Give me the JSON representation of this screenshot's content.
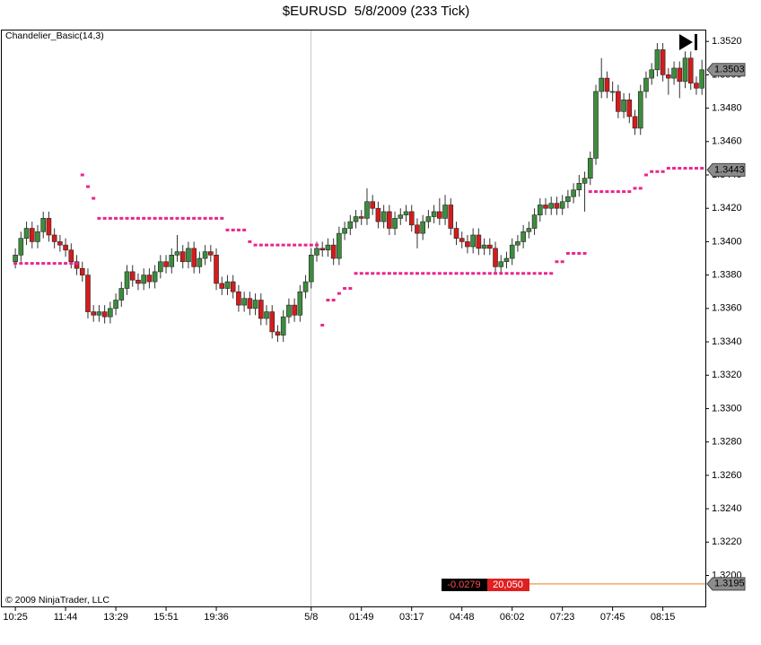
{
  "chart_data": {
    "type": "candlestick",
    "title": "$EURUSD  5/8/2009 (233 Tick)",
    "indicator_label": "Chandelier_Basic(14,3)",
    "copyright": "© 2009 NinjaTrader, LLC",
    "up_color": "#3d8c3d",
    "down_color": "#d41c1c",
    "categories": [
      "10:25",
      null,
      null,
      null,
      null,
      null,
      null,
      null,
      null,
      "11:44",
      null,
      null,
      null,
      null,
      null,
      null,
      null,
      null,
      "13:29",
      null,
      null,
      null,
      null,
      null,
      null,
      null,
      null,
      "15:51",
      null,
      null,
      null,
      null,
      null,
      null,
      null,
      null,
      "19:36",
      null,
      null,
      null,
      null,
      null,
      null,
      null,
      null,
      null,
      null,
      null,
      null,
      null,
      null,
      null,
      null,
      "5/8",
      null,
      null,
      null,
      null,
      null,
      null,
      null,
      null,
      "01:49",
      null,
      null,
      null,
      null,
      null,
      null,
      null,
      null,
      "03:17",
      null,
      null,
      null,
      null,
      null,
      null,
      null,
      null,
      "04:48",
      null,
      null,
      null,
      null,
      null,
      null,
      null,
      null,
      "06:02",
      null,
      null,
      null,
      null,
      null,
      null,
      null,
      null,
      "07:23",
      null,
      null,
      null,
      null,
      null,
      null,
      null,
      null,
      "07:45",
      null,
      null,
      null,
      null,
      null,
      null,
      null,
      null,
      "08:15",
      null,
      null,
      null,
      null,
      null,
      null,
      null
    ],
    "open": [
      1.3388,
      1.3392,
      1.3402,
      1.3408,
      1.34,
      1.3406,
      1.3414,
      1.3404,
      1.34,
      1.3398,
      1.3395,
      1.3388,
      1.3384,
      1.338,
      1.3358,
      1.3356,
      1.3358,
      1.3355,
      1.336,
      1.3365,
      1.3372,
      1.3382,
      1.3377,
      1.3375,
      1.338,
      1.3376,
      1.3382,
      1.3388,
      1.3385,
      1.3392,
      1.3394,
      1.3388,
      1.3396,
      1.3385,
      1.339,
      1.3394,
      1.3392,
      1.3375,
      1.3372,
      1.3376,
      1.337,
      1.3362,
      1.3366,
      1.336,
      1.3365,
      1.3354,
      1.3358,
      1.3346,
      1.3344,
      1.3355,
      1.3362,
      1.3356,
      1.337,
      1.3376,
      1.3392,
      1.3396,
      1.3395,
      1.3398,
      1.339,
      1.3405,
      1.3408,
      1.3412,
      1.3415,
      1.3414,
      1.3424,
      1.342,
      1.3412,
      1.3418,
      1.3408,
      1.3414,
      1.3416,
      1.3418,
      1.341,
      1.3405,
      1.3412,
      1.3415,
      1.3418,
      1.3414,
      1.3422,
      1.3408,
      1.3402,
      1.34,
      1.3397,
      1.3404,
      1.3396,
      1.3398,
      1.3396,
      1.3385,
      1.3388,
      1.339,
      1.3398,
      1.34,
      1.3406,
      1.3408,
      1.3416,
      1.3422,
      1.342,
      1.3423,
      1.342,
      1.3424,
      1.3427,
      1.3431,
      1.3435,
      1.3438,
      1.345,
      1.349,
      1.3498,
      1.349,
      1.349,
      1.3478,
      1.3485,
      1.3475,
      1.3468,
      1.349,
      1.3498,
      1.3503,
      1.3515,
      1.35,
      1.3498,
      1.3504,
      1.3496,
      1.351,
      1.3495,
      1.3492
    ],
    "high": [
      1.3396,
      1.3406,
      1.3412,
      1.3412,
      1.341,
      1.3418,
      1.3418,
      1.3408,
      1.3404,
      1.3402,
      1.3399,
      1.3392,
      1.3388,
      1.3384,
      1.3362,
      1.3362,
      1.3362,
      1.3364,
      1.3369,
      1.3376,
      1.3386,
      1.3386,
      1.3381,
      1.3384,
      1.3384,
      1.3386,
      1.3392,
      1.3392,
      1.3396,
      1.3404,
      1.3398,
      1.34,
      1.34,
      1.3394,
      1.3398,
      1.3398,
      1.3396,
      1.3379,
      1.338,
      1.338,
      1.3374,
      1.337,
      1.337,
      1.3369,
      1.3369,
      1.3362,
      1.3362,
      1.335,
      1.3359,
      1.3366,
      1.3366,
      1.3374,
      1.338,
      1.3396,
      1.34,
      1.34,
      1.3402,
      1.3402,
      1.3409,
      1.3412,
      1.3416,
      1.3419,
      1.3419,
      1.3432,
      1.3428,
      1.3424,
      1.3422,
      1.3422,
      1.3418,
      1.342,
      1.3422,
      1.3422,
      1.3414,
      1.3416,
      1.3419,
      1.3422,
      1.3426,
      1.3428,
      1.3426,
      1.3412,
      1.3406,
      1.3404,
      1.3408,
      1.3408,
      1.3402,
      1.3402,
      1.34,
      1.3392,
      1.3394,
      1.3402,
      1.3404,
      1.341,
      1.3412,
      1.342,
      1.3426,
      1.3426,
      1.3427,
      1.3427,
      1.3428,
      1.3431,
      1.3435,
      1.344,
      1.3442,
      1.3454,
      1.3494,
      1.351,
      1.3502,
      1.3496,
      1.3494,
      1.3489,
      1.3489,
      1.3479,
      1.3494,
      1.3502,
      1.3507,
      1.3519,
      1.3519,
      1.3504,
      1.3508,
      1.3508,
      1.3514,
      1.3514,
      1.3499,
      1.3509
    ],
    "low": [
      1.3384,
      1.3388,
      1.3398,
      1.3396,
      1.3396,
      1.3402,
      1.34,
      1.3396,
      1.3394,
      1.3391,
      1.3384,
      1.338,
      1.3376,
      1.3354,
      1.3352,
      1.3352,
      1.3351,
      1.3351,
      1.3356,
      1.3361,
      1.3368,
      1.3373,
      1.3371,
      1.3371,
      1.3372,
      1.3372,
      1.3378,
      1.3381,
      1.3381,
      1.3388,
      1.3384,
      1.3384,
      1.3381,
      1.3381,
      1.3386,
      1.3388,
      1.3371,
      1.3368,
      1.3368,
      1.3366,
      1.3358,
      1.3358,
      1.3356,
      1.3356,
      1.335,
      1.335,
      1.3342,
      1.334,
      1.334,
      1.3351,
      1.3352,
      1.3352,
      1.3366,
      1.3372,
      1.3388,
      1.3391,
      1.3391,
      1.3386,
      1.3386,
      1.3401,
      1.3404,
      1.3408,
      1.341,
      1.341,
      1.3416,
      1.3408,
      1.3408,
      1.3404,
      1.3404,
      1.341,
      1.3412,
      1.3406,
      1.3396,
      1.3401,
      1.3408,
      1.3411,
      1.341,
      1.341,
      1.3404,
      1.3398,
      1.3396,
      1.3393,
      1.3393,
      1.3392,
      1.3392,
      1.3392,
      1.3381,
      1.3381,
      1.3384,
      1.3386,
      1.3394,
      1.3396,
      1.3402,
      1.3404,
      1.3412,
      1.3416,
      1.3416,
      1.3416,
      1.3416,
      1.342,
      1.3423,
      1.3427,
      1.3418,
      1.3434,
      1.3446,
      1.3486,
      1.3486,
      1.3484,
      1.3474,
      1.3474,
      1.3471,
      1.3464,
      1.3464,
      1.3486,
      1.3494,
      1.3499,
      1.3496,
      1.3488,
      1.3494,
      1.3486,
      1.3492,
      1.3491,
      1.3488,
      1.3488
    ],
    "close": [
      1.3392,
      1.3402,
      1.3408,
      1.34,
      1.3406,
      1.3414,
      1.3404,
      1.34,
      1.3398,
      1.3395,
      1.3388,
      1.3384,
      1.338,
      1.3358,
      1.3356,
      1.3358,
      1.3355,
      1.336,
      1.3365,
      1.3372,
      1.3382,
      1.3377,
      1.3375,
      1.338,
      1.3376,
      1.3382,
      1.3388,
      1.3385,
      1.3392,
      1.3394,
      1.3388,
      1.3396,
      1.3385,
      1.339,
      1.3394,
      1.3392,
      1.3375,
      1.3372,
      1.3376,
      1.337,
      1.3362,
      1.3366,
      1.336,
      1.3365,
      1.3354,
      1.3358,
      1.3346,
      1.3344,
      1.3355,
      1.3362,
      1.3356,
      1.337,
      1.3376,
      1.3392,
      1.3396,
      1.3395,
      1.3398,
      1.339,
      1.3405,
      1.3408,
      1.3412,
      1.3415,
      1.3414,
      1.3424,
      1.342,
      1.3412,
      1.3418,
      1.3408,
      1.3414,
      1.3416,
      1.3418,
      1.341,
      1.3405,
      1.3412,
      1.3415,
      1.3418,
      1.3414,
      1.3422,
      1.3408,
      1.3402,
      1.34,
      1.3397,
      1.3404,
      1.3396,
      1.3398,
      1.3396,
      1.3385,
      1.3388,
      1.339,
      1.3398,
      1.34,
      1.3406,
      1.3408,
      1.3416,
      1.3422,
      1.342,
      1.3423,
      1.342,
      1.3424,
      1.3427,
      1.3431,
      1.3435,
      1.3438,
      1.345,
      1.349,
      1.3498,
      1.349,
      1.349,
      1.3478,
      1.3485,
      1.3475,
      1.3468,
      1.349,
      1.3498,
      1.3503,
      1.3515,
      1.35,
      1.3498,
      1.3504,
      1.3496,
      1.351,
      1.3495,
      1.3492,
      1.3503
    ],
    "indicator": {
      "color": "#e8278c",
      "values": [
        1.3387,
        1.3387,
        1.3387,
        1.3387,
        1.3387,
        1.3387,
        1.3387,
        1.3387,
        1.3387,
        1.3387,
        1.3387,
        1.3387,
        1.344,
        1.3433,
        1.3426,
        1.3414,
        1.3414,
        1.3414,
        1.3414,
        1.3414,
        1.3414,
        1.3414,
        1.3414,
        1.3414,
        1.3414,
        1.3414,
        1.3414,
        1.3414,
        1.3414,
        1.3414,
        1.3414,
        1.3414,
        1.3414,
        1.3414,
        1.3414,
        1.3414,
        1.3414,
        1.3414,
        1.3407,
        1.3407,
        1.3407,
        1.3407,
        1.34,
        1.3398,
        1.3398,
        1.3398,
        1.3398,
        1.3398,
        1.3398,
        1.3398,
        1.3398,
        1.3398,
        1.3398,
        1.3398,
        1.3398,
        1.335,
        1.3365,
        1.3365,
        1.3369,
        1.3372,
        1.3372,
        1.3381,
        1.3381,
        1.3381,
        1.3381,
        1.3381,
        1.3381,
        1.3381,
        1.3381,
        1.3381,
        1.3381,
        1.3381,
        1.3381,
        1.3381,
        1.3381,
        1.3381,
        1.3381,
        1.3381,
        1.3381,
        1.3381,
        1.3381,
        1.3381,
        1.3381,
        1.3381,
        1.3381,
        1.3381,
        1.3381,
        1.3381,
        1.3381,
        1.3381,
        1.3381,
        1.3381,
        1.3381,
        1.3381,
        1.3381,
        1.3381,
        1.3381,
        1.3388,
        1.3388,
        1.3393,
        1.3393,
        1.3393,
        1.3393,
        1.343,
        1.343,
        1.343,
        1.343,
        1.343,
        1.343,
        1.343,
        1.343,
        1.3432,
        1.3432,
        1.344,
        1.3442,
        1.3442,
        1.3442,
        1.3444,
        1.3444,
        1.3444,
        1.3444,
        1.3444,
        1.3444,
        1.3444
      ]
    },
    "price_markers": [
      {
        "value": 1.3503,
        "color": "#8c8c8c"
      },
      {
        "value": 1.3443,
        "color": "#8c8c8c"
      },
      {
        "value": 1.3195,
        "color": "#8c8c8c",
        "line_color": "#f0a860"
      }
    ],
    "position": {
      "pnl": "-0.0279",
      "quantity": "20,050"
    },
    "ylim": [
      1.3182,
      1.3526
    ],
    "yticks": [
      {
        "value": 1.32,
        "label": "1.3200"
      },
      {
        "value": 1.322,
        "label": "1.3220"
      },
      {
        "value": 1.324,
        "label": "1.3240"
      },
      {
        "value": 1.326,
        "label": "1.3260"
      },
      {
        "value": 1.328,
        "label": "1.3280"
      },
      {
        "value": 1.33,
        "label": "1.3300"
      },
      {
        "value": 1.332,
        "label": "1.3320"
      },
      {
        "value": 1.334,
        "label": "1.3340"
      },
      {
        "value": 1.336,
        "label": "1.3360"
      },
      {
        "value": 1.338,
        "label": "1.3380"
      },
      {
        "value": 1.34,
        "label": "1.3400"
      },
      {
        "value": 1.342,
        "label": "1.3420"
      },
      {
        "value": 1.344,
        "label": "1.3440"
      },
      {
        "value": 1.346,
        "label": "1.3460"
      },
      {
        "value": 1.348,
        "label": "1.3480"
      },
      {
        "value": 1.35,
        "label": "1.3500"
      },
      {
        "value": 1.352,
        "label": "1.3520"
      }
    ]
  }
}
